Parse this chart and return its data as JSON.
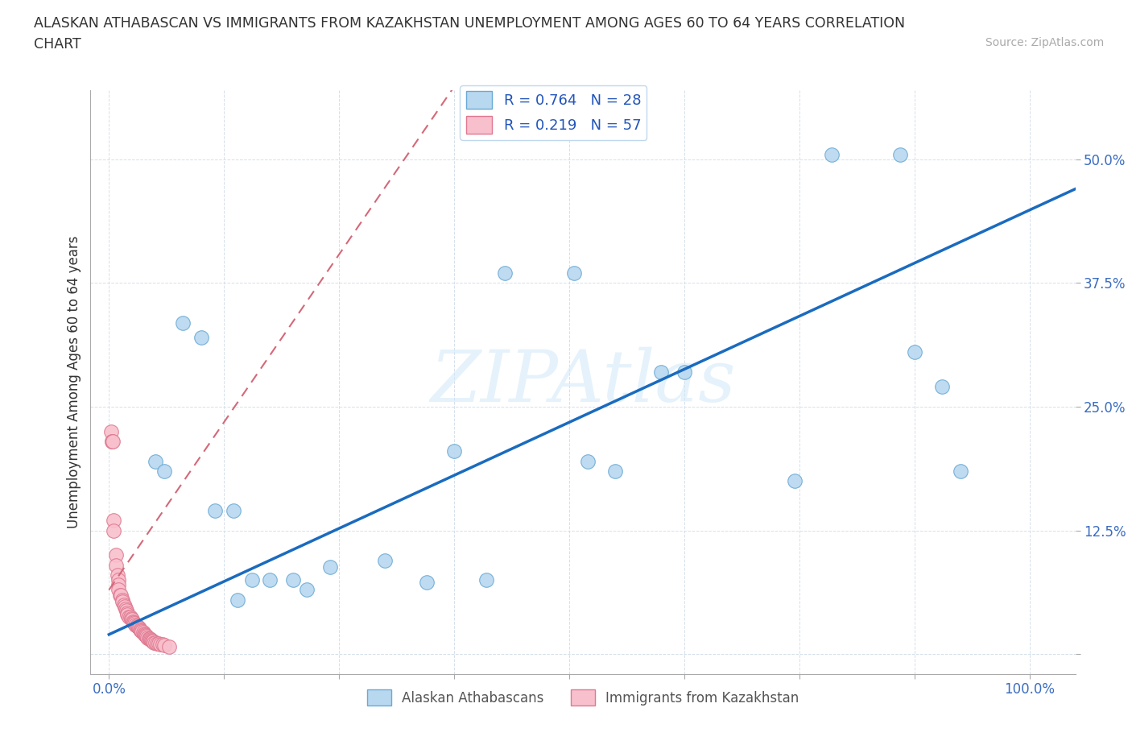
{
  "title_line1": "ALASKAN ATHABASCAN VS IMMIGRANTS FROM KAZAKHSTAN UNEMPLOYMENT AMONG AGES 60 TO 64 YEARS CORRELATION",
  "title_line2": "CHART",
  "source": "Source: ZipAtlas.com",
  "ylabel": "Unemployment Among Ages 60 to 64 years",
  "xlim": [
    -0.02,
    1.05
  ],
  "ylim": [
    -0.02,
    0.57
  ],
  "xticks": [
    0.0,
    0.125,
    0.25,
    0.375,
    0.5,
    0.625,
    0.75,
    0.875,
    1.0
  ],
  "xticklabels": [
    "0.0%",
    "",
    "",
    "",
    "",
    "",
    "",
    "",
    "100.0%"
  ],
  "yticks": [
    0.0,
    0.125,
    0.25,
    0.375,
    0.5
  ],
  "yticklabels": [
    "",
    "12.5%",
    "25.0%",
    "37.5%",
    "50.0%"
  ],
  "blue_R": "0.764",
  "blue_N": "28",
  "pink_R": "0.219",
  "pink_N": "57",
  "blue_fill_color": "#b8d8f0",
  "blue_edge_color": "#6aaad4",
  "pink_fill_color": "#f8c0cc",
  "pink_edge_color": "#e07890",
  "trend_blue_color": "#1a6bbf",
  "trend_pink_color": "#d46878",
  "watermark_color": "#d0e8f8",
  "blue_scatter": [
    [
      0.05,
      0.195
    ],
    [
      0.06,
      0.185
    ],
    [
      0.08,
      0.335
    ],
    [
      0.1,
      0.32
    ],
    [
      0.115,
      0.145
    ],
    [
      0.135,
      0.145
    ],
    [
      0.14,
      0.055
    ],
    [
      0.155,
      0.075
    ],
    [
      0.175,
      0.075
    ],
    [
      0.2,
      0.075
    ],
    [
      0.215,
      0.065
    ],
    [
      0.24,
      0.088
    ],
    [
      0.3,
      0.095
    ],
    [
      0.345,
      0.073
    ],
    [
      0.375,
      0.205
    ],
    [
      0.41,
      0.075
    ],
    [
      0.43,
      0.385
    ],
    [
      0.505,
      0.385
    ],
    [
      0.52,
      0.195
    ],
    [
      0.55,
      0.185
    ],
    [
      0.6,
      0.285
    ],
    [
      0.625,
      0.285
    ],
    [
      0.745,
      0.175
    ],
    [
      0.785,
      0.505
    ],
    [
      0.86,
      0.505
    ],
    [
      0.875,
      0.305
    ],
    [
      0.905,
      0.27
    ],
    [
      0.925,
      0.185
    ]
  ],
  "pink_scatter": [
    [
      0.002,
      0.225
    ],
    [
      0.003,
      0.215
    ],
    [
      0.003,
      0.215
    ],
    [
      0.004,
      0.215
    ],
    [
      0.005,
      0.135
    ],
    [
      0.005,
      0.125
    ],
    [
      0.008,
      0.1
    ],
    [
      0.008,
      0.09
    ],
    [
      0.009,
      0.08
    ],
    [
      0.01,
      0.075
    ],
    [
      0.01,
      0.07
    ],
    [
      0.01,
      0.065
    ],
    [
      0.012,
      0.06
    ],
    [
      0.013,
      0.06
    ],
    [
      0.015,
      0.055
    ],
    [
      0.015,
      0.053
    ],
    [
      0.016,
      0.05
    ],
    [
      0.017,
      0.048
    ],
    [
      0.018,
      0.046
    ],
    [
      0.019,
      0.044
    ],
    [
      0.02,
      0.042
    ],
    [
      0.02,
      0.04
    ],
    [
      0.022,
      0.038
    ],
    [
      0.023,
      0.038
    ],
    [
      0.024,
      0.036
    ],
    [
      0.025,
      0.035
    ],
    [
      0.026,
      0.033
    ],
    [
      0.027,
      0.032
    ],
    [
      0.028,
      0.031
    ],
    [
      0.029,
      0.03
    ],
    [
      0.03,
      0.029
    ],
    [
      0.031,
      0.028
    ],
    [
      0.032,
      0.027
    ],
    [
      0.033,
      0.026
    ],
    [
      0.034,
      0.025
    ],
    [
      0.035,
      0.024
    ],
    [
      0.036,
      0.023
    ],
    [
      0.037,
      0.022
    ],
    [
      0.038,
      0.021
    ],
    [
      0.039,
      0.02
    ],
    [
      0.04,
      0.019
    ],
    [
      0.041,
      0.018
    ],
    [
      0.042,
      0.017
    ],
    [
      0.043,
      0.016
    ],
    [
      0.044,
      0.016
    ],
    [
      0.045,
      0.015
    ],
    [
      0.046,
      0.014
    ],
    [
      0.047,
      0.013
    ],
    [
      0.048,
      0.013
    ],
    [
      0.049,
      0.012
    ],
    [
      0.05,
      0.012
    ],
    [
      0.052,
      0.011
    ],
    [
      0.054,
      0.011
    ],
    [
      0.056,
      0.01
    ],
    [
      0.058,
      0.01
    ],
    [
      0.06,
      0.009
    ],
    [
      0.065,
      0.008
    ]
  ]
}
